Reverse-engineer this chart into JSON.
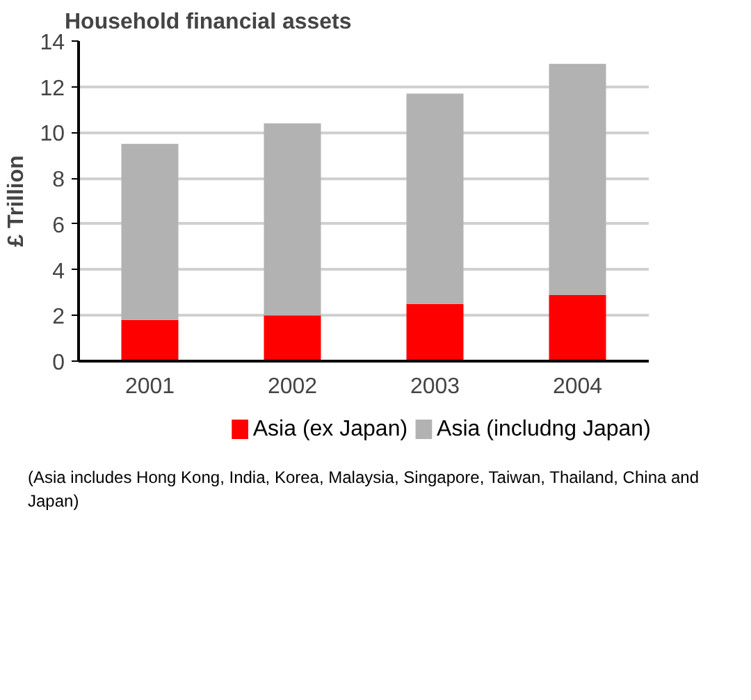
{
  "chart_data": {
    "type": "bar",
    "title": "Household financial assets",
    "ylabel": "£ Trillion",
    "categories": [
      "2001",
      "2002",
      "2003",
      "2004"
    ],
    "series": [
      {
        "name": "Asia (ex Japan)",
        "color": "#ff0000",
        "values": [
          1.8,
          2.0,
          2.5,
          2.9
        ]
      },
      {
        "name": "Asia (includng Japan)",
        "color": "#b2b2b2",
        "values": [
          7.7,
          8.4,
          9.2,
          10.1
        ]
      }
    ],
    "stacked": true,
    "ylim": [
      0,
      14
    ],
    "yticks": [
      0,
      2,
      4,
      6,
      8,
      10,
      12,
      14
    ],
    "grid": "y",
    "legend": "bottom",
    "annotations": [
      "(Asia includes Hong Kong, India, Korea, Malaysia, Singapore, Taiwan, Thailand, China and Japan)"
    ]
  }
}
